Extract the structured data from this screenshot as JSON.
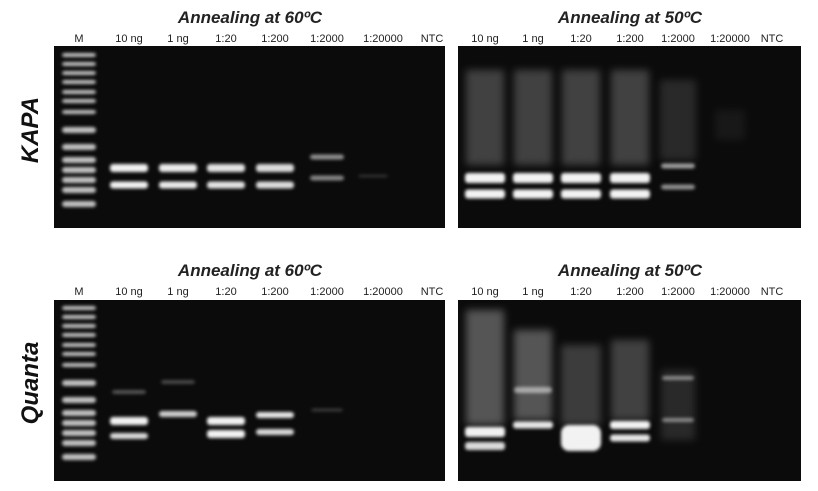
{
  "rows": [
    {
      "label": "KAPA",
      "panels": [
        {
          "title": "Annealing at 60ºC",
          "lanes": [
            "M",
            "10 ng",
            "1 ng",
            "1:20",
            "1:200",
            "1:2000",
            "1:20000",
            "NTC"
          ]
        },
        {
          "title": "Annealing at 50ºC",
          "lanes": [
            "10 ng",
            "1 ng",
            "1:20",
            "1:200",
            "1:2000",
            "1:20000",
            "NTC"
          ]
        }
      ]
    },
    {
      "label": "Quanta",
      "panels": [
        {
          "title": "Annealing at 60ºC",
          "lanes": [
            "M",
            "10 ng",
            "1 ng",
            "1:20",
            "1:200",
            "1:2000",
            "1:20000",
            "NTC"
          ]
        },
        {
          "title": "Annealing at 50ºC",
          "lanes": [
            "10 ng",
            "1 ng",
            "1:20",
            "1:200",
            "1:2000",
            "1:20000",
            "NTC"
          ]
        }
      ]
    }
  ]
}
